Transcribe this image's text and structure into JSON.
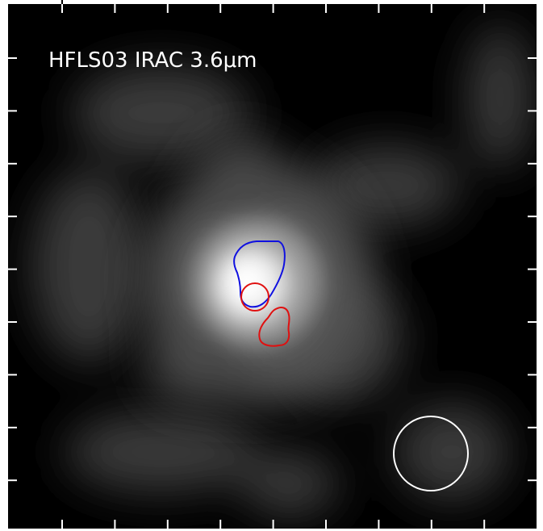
{
  "label": "HFLS03 IRAC 3.6μm"
}
